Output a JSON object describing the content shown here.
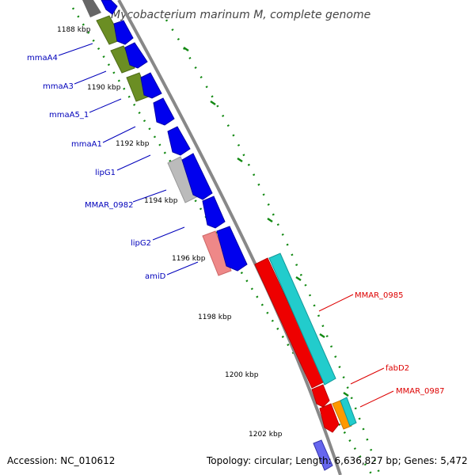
{
  "title": "Mycobacterium marinum M, complete genome",
  "scale_labels": [
    "1188 kbp",
    "1190 kbp",
    "1192 kbp",
    "1194 kbp",
    "1196 kbp",
    "1198 kbp",
    "1200 kbp",
    "1202 kbp"
  ],
  "genes_left": [
    "mmaA4",
    "mmaA3",
    "mmaA5_1",
    "mmaA1",
    "lipG1",
    "MMAR_0982",
    "lipG2",
    "amiD"
  ],
  "genes_right": [
    "MMAR_0985",
    "fabD2",
    "MMAR_0987"
  ],
  "footer": {
    "accession": "Accession: NC_010612",
    "summary": "Topology: circular; Length: 6,636,827 bp; Genes: 5,472"
  },
  "colors": {
    "backbone": "#888888",
    "scale_ticks": "#118811",
    "label_left": "#0000bb",
    "label_right": "#dd0000"
  }
}
